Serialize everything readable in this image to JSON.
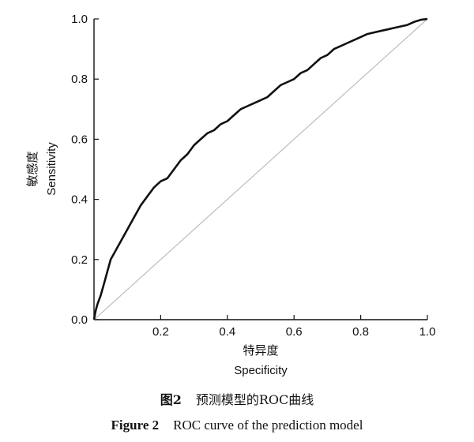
{
  "chart_data": {
    "type": "line",
    "ylabel_cn": "敏感度",
    "ylabel_en": "Sensitivity",
    "xlabel_cn": "特异度",
    "xlabel_en": "Specificity",
    "xlim": [
      0,
      1
    ],
    "ylim": [
      0,
      1
    ],
    "x_ticks": [
      "0.2",
      "0.4",
      "0.6",
      "0.8",
      "1.0"
    ],
    "x_tick_values": [
      0.2,
      0.4,
      0.6,
      0.8,
      1.0
    ],
    "y_ticks": [
      "0.0",
      "0.2",
      "0.4",
      "0.6",
      "0.8",
      "1.0"
    ],
    "y_tick_values": [
      0.0,
      0.2,
      0.4,
      0.6,
      0.8,
      1.0
    ],
    "grid": false,
    "series": [
      {
        "style": "thick-black",
        "color": "#111111",
        "x": [
          0,
          0.005,
          0.01,
          0.02,
          0.03,
          0.04,
          0.05,
          0.06,
          0.08,
          0.1,
          0.12,
          0.14,
          0.16,
          0.18,
          0.2,
          0.22,
          0.24,
          0.26,
          0.28,
          0.3,
          0.32,
          0.34,
          0.36,
          0.38,
          0.4,
          0.42,
          0.44,
          0.46,
          0.48,
          0.5,
          0.52,
          0.54,
          0.56,
          0.58,
          0.6,
          0.62,
          0.64,
          0.66,
          0.68,
          0.7,
          0.72,
          0.74,
          0.76,
          0.78,
          0.8,
          0.82,
          0.84,
          0.86,
          0.88,
          0.9,
          0.92,
          0.94,
          0.96,
          0.98,
          1.0
        ],
        "y": [
          0,
          0.03,
          0.05,
          0.08,
          0.12,
          0.16,
          0.2,
          0.22,
          0.26,
          0.3,
          0.34,
          0.38,
          0.41,
          0.44,
          0.46,
          0.47,
          0.5,
          0.53,
          0.55,
          0.58,
          0.6,
          0.62,
          0.63,
          0.65,
          0.66,
          0.68,
          0.7,
          0.71,
          0.72,
          0.73,
          0.74,
          0.76,
          0.78,
          0.79,
          0.8,
          0.82,
          0.83,
          0.85,
          0.87,
          0.88,
          0.9,
          0.91,
          0.92,
          0.93,
          0.94,
          0.95,
          0.955,
          0.96,
          0.965,
          0.97,
          0.975,
          0.98,
          0.99,
          0.997,
          1.0
        ]
      },
      {
        "style": "reference-diagonal",
        "color": "#bdbdbd",
        "x": [
          0,
          1
        ],
        "y": [
          0,
          1
        ]
      }
    ]
  },
  "caption": {
    "cn_label": "图2",
    "cn_text": "预测模型的ROC曲线",
    "en_label": "Figure 2",
    "en_text": "ROC curve of the prediction model"
  }
}
